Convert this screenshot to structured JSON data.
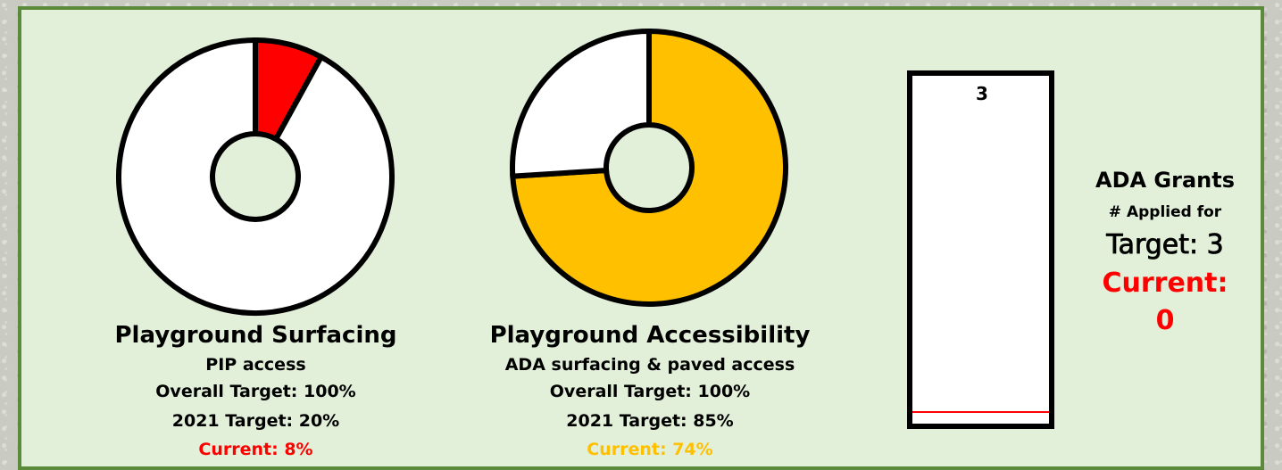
{
  "colors": {
    "panel_bg": "#e2efd9",
    "panel_border": "#5b8a3a",
    "red": "#ff0000",
    "amber": "#ffc000",
    "outline": "#000000",
    "empty": "#ffffff"
  },
  "donut_surfacing": {
    "title": "Playground Surfacing",
    "subtitle": "PIP access",
    "overall_target": "Overall Target: 100%",
    "year_target": "2021 Target: 20%",
    "current": "Current: 8%"
  },
  "donut_accessibility": {
    "title": "Playground Accessibility",
    "subtitle": "ADA surfacing & paved access",
    "overall_target": "Overall Target: 100%",
    "year_target": "2021 Target: 85%",
    "current": "Current: 74%"
  },
  "grants": {
    "bar_label": "3",
    "title": "ADA Grants",
    "subtitle": "# Applied for",
    "target": "Target: 3",
    "current_label": "Current:",
    "current_value": "0"
  },
  "chart_data": [
    {
      "type": "pie",
      "categories": [
        "Current",
        "Remaining"
      ],
      "values": [
        8,
        92
      ],
      "colors": [
        "#ff0000",
        "#ffffff"
      ],
      "title": "Playground Surfacing"
    },
    {
      "type": "pie",
      "categories": [
        "Current",
        "Remaining"
      ],
      "values": [
        74,
        26
      ],
      "colors": [
        "#ffc000",
        "#ffffff"
      ],
      "title": "Playground Accessibility"
    },
    {
      "type": "bar",
      "categories": [
        "ADA Grants"
      ],
      "values": [
        0
      ],
      "target": 3,
      "ylim": [
        0,
        3
      ],
      "title": "ADA Grants"
    }
  ]
}
